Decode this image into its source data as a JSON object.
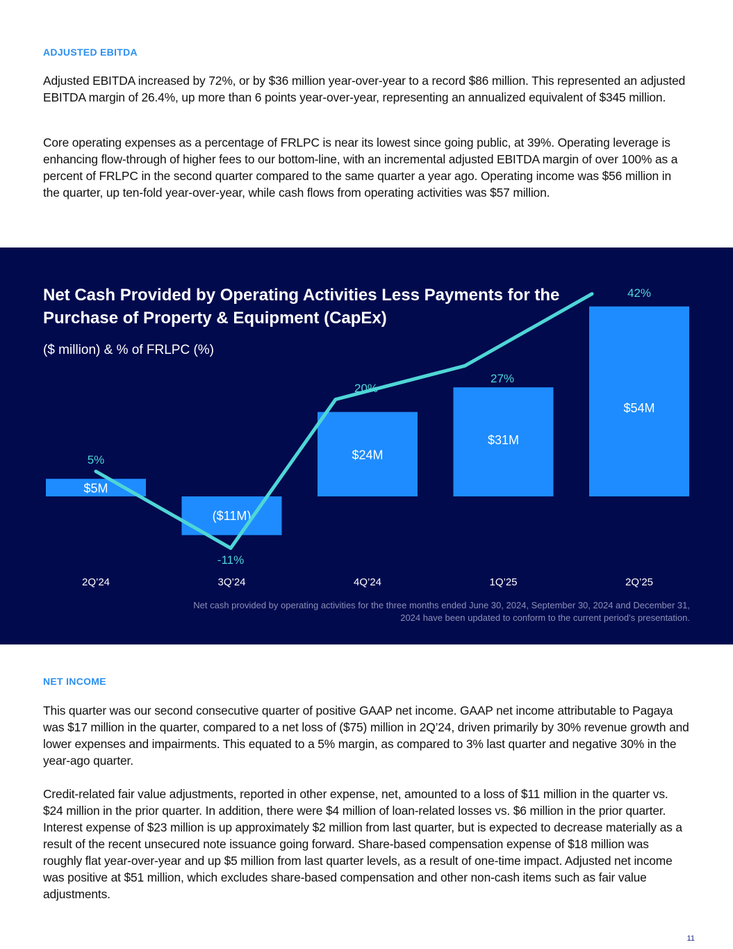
{
  "sections": {
    "adjusted_ebitda": {
      "heading": "ADJUSTED EBITDA",
      "paragraphs": [
        "Adjusted EBITDA increased by 72%, or by $36 million year-over-year to a record $86 million. This represented an adjusted EBITDA margin of 26.4%, up more than 6 points year-over-year, representing an annualized equivalent of $345 million.",
        "Core operating expenses as a percentage of FRLPC is near its lowest since going public, at 39%. Operating leverage is enhancing flow-through of higher fees to our bottom-line, with an incremental adjusted EBITDA margin of over 100% as a percent of FRLPC in the second quarter compared to the same quarter a year ago. Operating income was $56 million in the quarter, up ten-fold year-over-year, while cash flows from operating activities was $57 million."
      ]
    },
    "net_income": {
      "heading": "NET INCOME",
      "paragraphs": [
        "This quarter was our second consecutive quarter of positive GAAP net income. GAAP net income attributable to Pagaya was $17 million in the quarter, compared to a net loss of ($75) million in 2Q’24, driven primarily by 30% revenue growth and lower expenses and impairments. This equated to a 5% margin, as compared to 3% last quarter and negative 30% in the year-ago quarter.",
        "Credit-related fair value adjustments, reported in other expense, net, amounted to a loss of $11 million in the quarter vs. $24 million in the prior quarter. In addition, there were $4 million of loan-related losses vs. $6 million in the prior quarter. Interest expense of $23 million is up approximately $2 million from last quarter, but is expected to decrease materially as a result of the recent unsecured note issuance going forward. Share-based compensation expense of $18 million was roughly flat year-over-year and up $5 million from last quarter levels, as a result of one-time impact. Adjusted net income was positive at $51 million, which excludes share-based compensation and other non-cash items such as fair value adjustments."
      ]
    }
  },
  "chart_data": {
    "type": "bar",
    "title": "Net Cash Provided by Operating Activities Less Payments for the Purchase of Property & Equipment (CapEx)",
    "subtitle": "($ million) & % of FRLPC (%)",
    "categories": [
      "2Q’24",
      "3Q’24",
      "4Q’24",
      "1Q’25",
      "2Q’25"
    ],
    "series": [
      {
        "name": "Net cash less CapEx ($M)",
        "type": "bar",
        "values": [
          5,
          -11,
          24,
          31,
          54
        ],
        "labels": [
          "$5M",
          "($11M)",
          "$24M",
          "$31M",
          "$54M"
        ],
        "color": "#1e8cff"
      },
      {
        "name": "% of FRLPC",
        "type": "line",
        "values": [
          5,
          -11,
          20,
          27,
          42
        ],
        "labels": [
          "5%",
          "-11%",
          "20%",
          "27%",
          "42%"
        ],
        "color": "#4fd6d6"
      }
    ],
    "xlabel": "",
    "ylabel": "",
    "ylim": [
      -14,
      56
    ],
    "grid": false,
    "footnote": "Net cash provided by operating activities for the three months ended June 30, 2024, September 30, 2024 and December 31, 2024 have been updated to conform to the current period’s presentation."
  },
  "page_number": "11"
}
